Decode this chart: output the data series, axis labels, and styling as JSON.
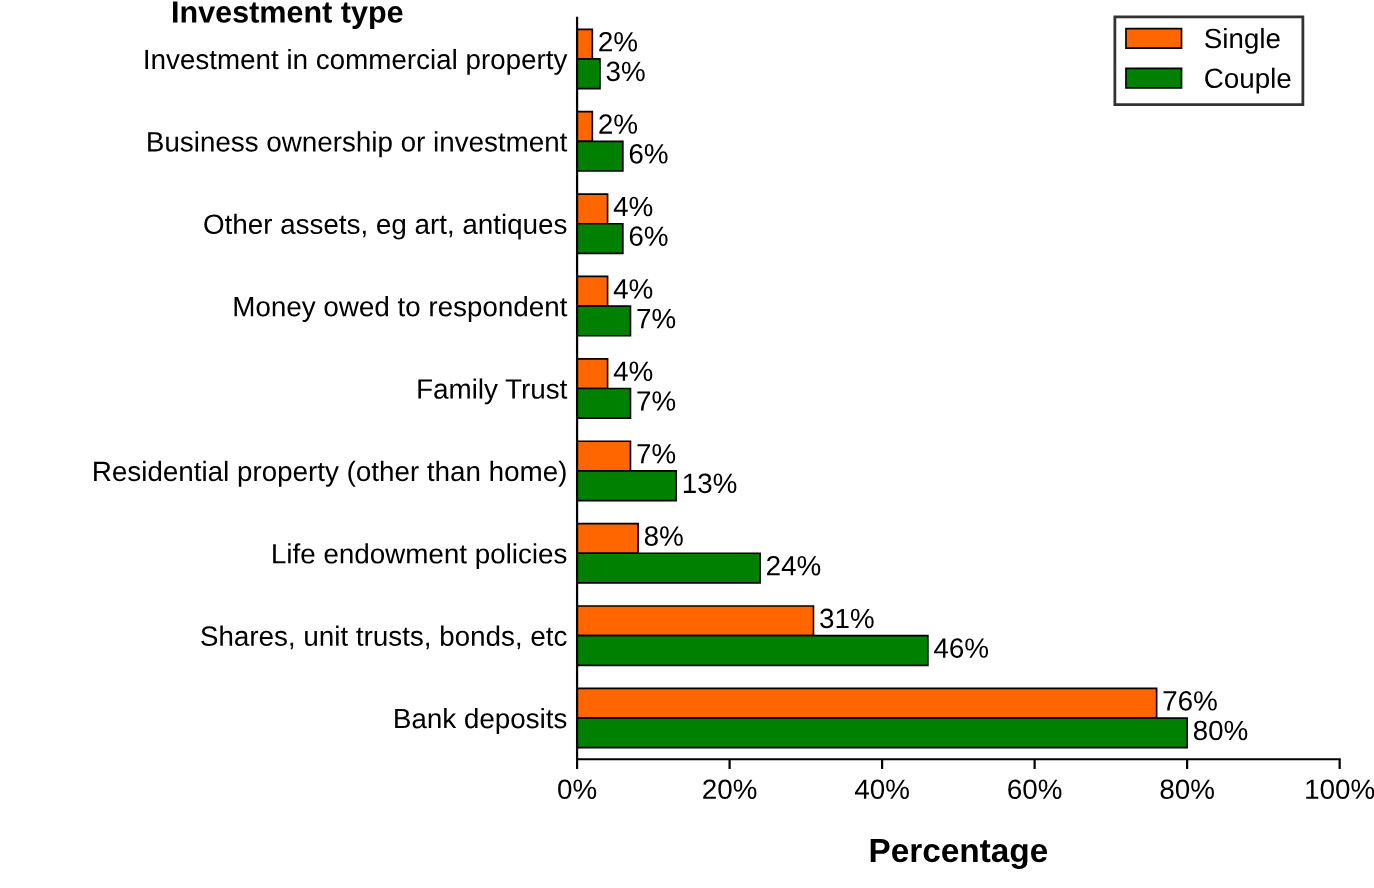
{
  "chart_data": {
    "type": "bar",
    "orientation": "horizontal",
    "ylabel": "Investment type",
    "xlabel": "Percentage",
    "categories": [
      "Investment in commercial property",
      "Business ownership or investment",
      "Other assets, eg art, antiques",
      "Money owed to respondent",
      "Family Trust",
      "Residential property (other than home)",
      "Life endowment policies",
      "Shares, unit trusts, bonds, etc",
      "Bank deposits"
    ],
    "series": [
      {
        "name": "Single",
        "color": "#ff6600",
        "values": [
          2,
          2,
          4,
          4,
          4,
          7,
          8,
          31,
          76
        ],
        "value_labels": [
          "2%",
          "2%",
          "4%",
          "4%",
          "4%",
          "7%",
          "8%",
          "31%",
          "76%"
        ]
      },
      {
        "name": "Couple",
        "color": "#008000",
        "values": [
          3,
          6,
          6,
          7,
          7,
          13,
          24,
          46,
          80
        ],
        "value_labels": [
          "3%",
          "6%",
          "6%",
          "7%",
          "7%",
          "13%",
          "24%",
          "46%",
          "80%"
        ]
      }
    ],
    "xlim": [
      0,
      100
    ],
    "xticks": [
      {
        "value": 0,
        "label": "0%"
      },
      {
        "value": 20,
        "label": "20%"
      },
      {
        "value": 40,
        "label": "40%"
      },
      {
        "value": 60,
        "label": "60%"
      },
      {
        "value": 80,
        "label": "80%"
      },
      {
        "value": 100,
        "label": "100%"
      }
    ],
    "legend": "top right",
    "grid": false
  }
}
